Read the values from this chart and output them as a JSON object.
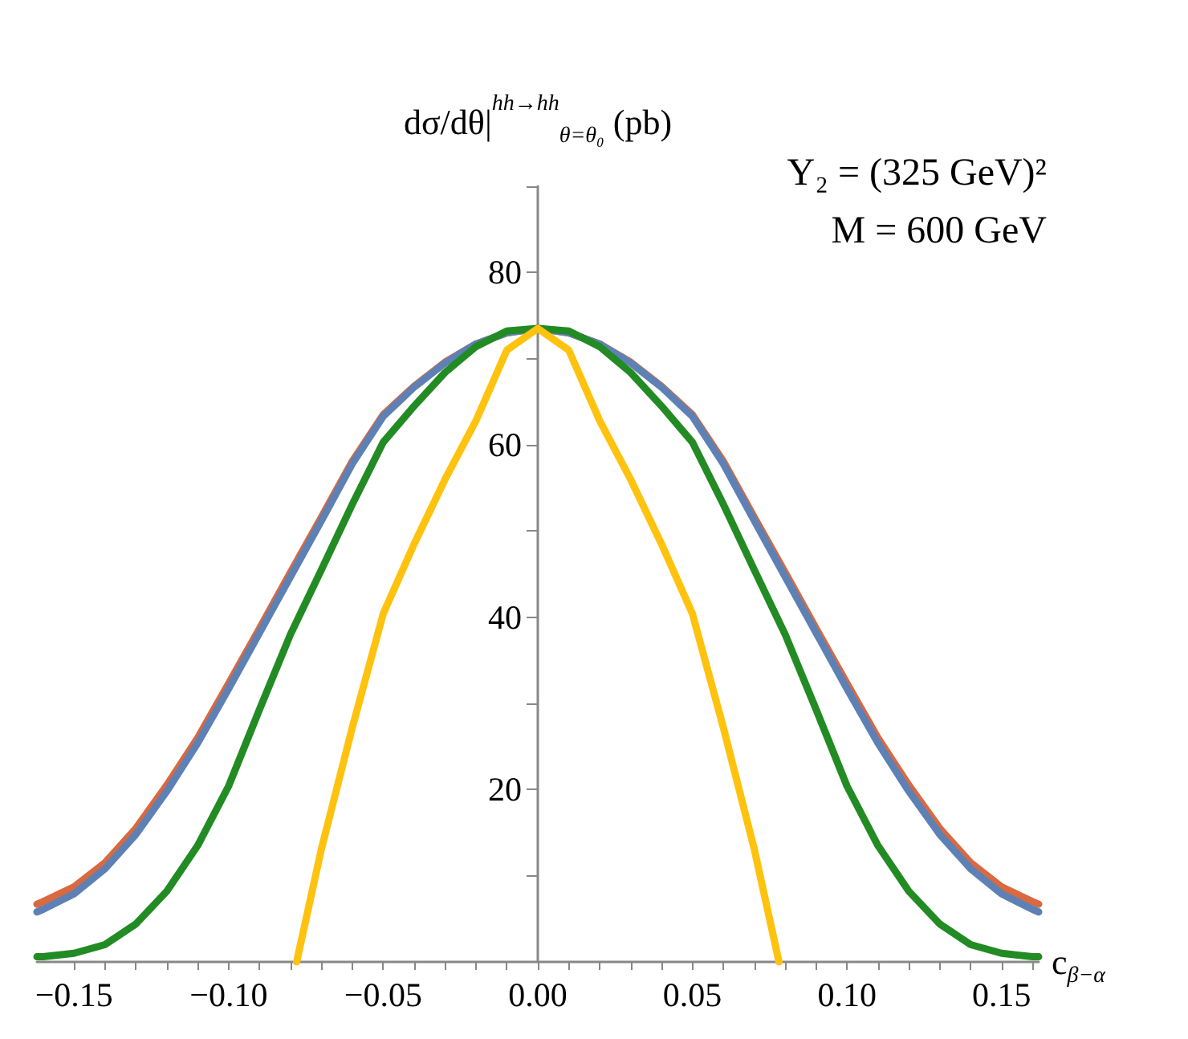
{
  "chart_data": {
    "type": "line",
    "ylabel": "dσ/dθ|$^{hh→hh}$$_{θ=θ₀}$ (pb)",
    "xlabel": "c$_{β−α}$",
    "annotations": [
      "Y₂ = (325 GeV)²",
      "M = 600 GeV"
    ],
    "xlim": [
      -0.162,
      0.162
    ],
    "ylim": [
      0,
      90
    ],
    "xticks": [
      {
        "value": -0.15,
        "label": "−0.15"
      },
      {
        "value": -0.14,
        "label": null
      },
      {
        "value": -0.13,
        "label": null
      },
      {
        "value": -0.12,
        "label": null
      },
      {
        "value": -0.11,
        "label": null
      },
      {
        "value": -0.1,
        "label": "−0.10"
      },
      {
        "value": -0.09,
        "label": null
      },
      {
        "value": -0.08,
        "label": null
      },
      {
        "value": -0.07,
        "label": null
      },
      {
        "value": -0.06,
        "label": null
      },
      {
        "value": -0.05,
        "label": "−0.05"
      },
      {
        "value": -0.04,
        "label": null
      },
      {
        "value": -0.03,
        "label": null
      },
      {
        "value": -0.02,
        "label": null
      },
      {
        "value": -0.01,
        "label": null
      },
      {
        "value": 0,
        "label": "0.00"
      },
      {
        "value": 0.01,
        "label": null
      },
      {
        "value": 0.02,
        "label": null
      },
      {
        "value": 0.03,
        "label": null
      },
      {
        "value": 0.04,
        "label": null
      },
      {
        "value": 0.05,
        "label": "0.05"
      },
      {
        "value": 0.06,
        "label": null
      },
      {
        "value": 0.07,
        "label": null
      },
      {
        "value": 0.08,
        "label": null
      },
      {
        "value": 0.09,
        "label": null
      },
      {
        "value": 0.1,
        "label": "0.10"
      },
      {
        "value": 0.11,
        "label": null
      },
      {
        "value": 0.12,
        "label": null
      },
      {
        "value": 0.13,
        "label": null
      },
      {
        "value": 0.14,
        "label": null
      },
      {
        "value": 0.15,
        "label": "0.15"
      },
      {
        "value": 0.16,
        "label": null
      }
    ],
    "yticks": [
      {
        "value": 10,
        "label": null
      },
      20,
      {
        "value": 30,
        "label": null
      },
      40,
      {
        "value": 50,
        "label": null
      },
      60,
      {
        "value": 70,
        "label": null
      },
      80,
      {
        "value": 90,
        "label": null
      }
    ],
    "grid": false,
    "marker": "none",
    "line_style": "solid",
    "x": [
      -0.162,
      -0.16,
      -0.15,
      -0.14,
      -0.13,
      -0.12,
      -0.11,
      -0.1,
      -0.09,
      -0.08,
      -0.07,
      -0.06,
      -0.05,
      -0.04,
      -0.03,
      -0.02,
      -0.01,
      0,
      0.01,
      0.02,
      0.03,
      0.04,
      0.05,
      0.06,
      0.07,
      0.08,
      0.09,
      0.1,
      0.11,
      0.12,
      0.13,
      0.14,
      0.15,
      0.16,
      0.162
    ],
    "series": [
      {
        "color": "#d9693f",
        "values": [
          6.7,
          7.0,
          8.7,
          11.5,
          15.5,
          20.5,
          26,
          32.3,
          38.7,
          45.2,
          51.6,
          58.1,
          63.5,
          66.8,
          69.6,
          71.7,
          73.0,
          73.5,
          73.0,
          71.7,
          69.6,
          66.8,
          63.5,
          58.1,
          51.6,
          45.2,
          38.7,
          32.3,
          26,
          20.5,
          15.5,
          11.5,
          8.7,
          7.0,
          6.7
        ]
      },
      {
        "color": "#5e81b5",
        "values": [
          5.8,
          6.1,
          7.9,
          10.8,
          14.8,
          19.8,
          25.4,
          31.7,
          38.2,
          44.7,
          51.2,
          57.8,
          63.3,
          66.7,
          69.5,
          71.7,
          73.0,
          73.5,
          73.0,
          71.7,
          69.5,
          66.7,
          63.3,
          57.8,
          51.2,
          44.7,
          38.2,
          31.7,
          25.4,
          19.8,
          14.8,
          10.8,
          7.9,
          6.1,
          5.8
        ]
      },
      {
        "color": "#238b23",
        "values": [
          0.6,
          0.6,
          1.0,
          2.0,
          4.4,
          8.2,
          13.5,
          20.4,
          29.3,
          38,
          45.5,
          53.1,
          60.3,
          64.5,
          68.4,
          71.4,
          73.2,
          73.5,
          73.2,
          71.4,
          68.4,
          64.5,
          60.3,
          53.1,
          45.5,
          38,
          29.3,
          20.4,
          13.5,
          8.2,
          4.4,
          2.0,
          1.0,
          0.6,
          0.6
        ]
      },
      {
        "color": "#ffc20e",
        "x": [
          -0.078,
          -0.07,
          -0.06,
          -0.05,
          -0.04,
          -0.03,
          -0.02,
          -0.01,
          0,
          0.01,
          0.02,
          0.03,
          0.04,
          0.05,
          0.06,
          0.07,
          0.078
        ],
        "values": [
          0,
          13.1,
          27.2,
          40.4,
          48.5,
          56,
          62.8,
          71,
          73.5,
          71,
          62.8,
          56,
          48.5,
          40.4,
          27.2,
          13.1,
          0
        ]
      }
    ]
  }
}
